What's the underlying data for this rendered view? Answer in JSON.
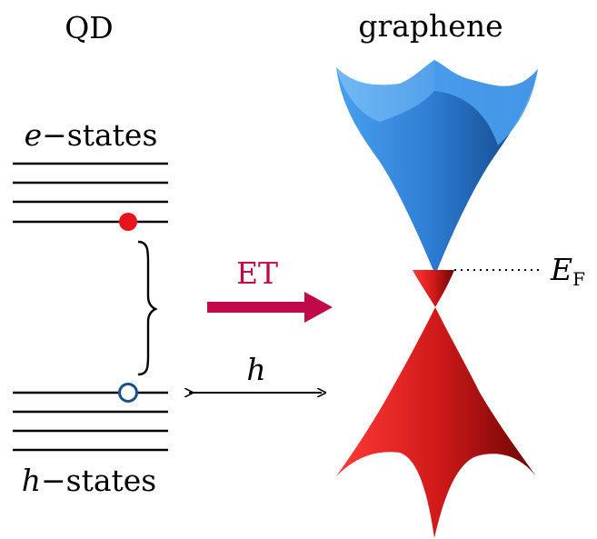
{
  "labels": {
    "qd_title": "QD",
    "graphene_title": "graphene",
    "e_states_italic": "e",
    "e_states_rest": "−states",
    "h_states_italic": "h",
    "h_states_rest": "−states",
    "et": "ET",
    "distance": "h",
    "fermi_main": "E",
    "fermi_sub": "F"
  },
  "colors": {
    "electron": "#e8141c",
    "hole_ring": "#1b4f8a",
    "et_arrow": "#c0084a",
    "cone_blue": "#2f7fd6",
    "cone_red": "#d21a1a"
  }
}
